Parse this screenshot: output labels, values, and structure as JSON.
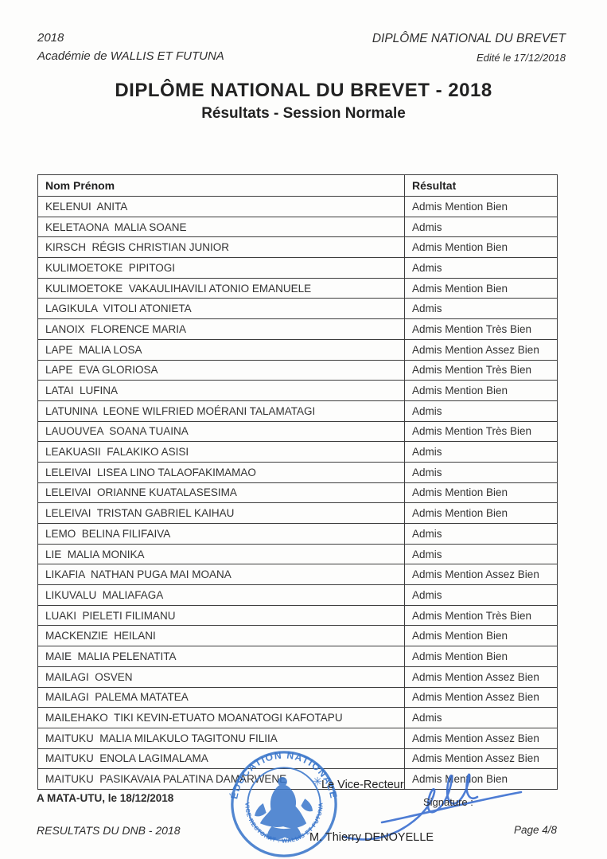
{
  "header": {
    "year": "2018",
    "academy": "Académie de WALLIS ET FUTUNA",
    "doc_type": "DIPLÔME NATIONAL DU BREVET",
    "edited": "Edité le 17/12/2018",
    "title": "DIPLÔME NATIONAL DU BREVET - 2018",
    "subtitle": "Résultats - Session Normale"
  },
  "table": {
    "columns": [
      "Nom Prénom",
      "Résultat"
    ],
    "rows": [
      {
        "name": "KELENUI  ANITA",
        "result": "Admis Mention Bien"
      },
      {
        "name": "KELETAONA  MALIA SOANE",
        "result": "Admis"
      },
      {
        "name": "KIRSCH  RÉGIS CHRISTIAN JUNIOR",
        "result": "Admis Mention Bien"
      },
      {
        "name": "KULIMOETOKE  PIPITOGI",
        "result": "Admis"
      },
      {
        "name": "KULIMOETOKE  VAKAULIHAVILI ATONIO EMANUELE",
        "result": "Admis Mention Bien"
      },
      {
        "name": "LAGIKULA  VITOLI ATONIETA",
        "result": "Admis"
      },
      {
        "name": "LANOIX  FLORENCE MARIA",
        "result": "Admis Mention Très Bien"
      },
      {
        "name": "LAPE  MALIA LOSA",
        "result": "Admis Mention Assez Bien"
      },
      {
        "name": "LAPE  EVA GLORIOSA",
        "result": "Admis Mention Très Bien"
      },
      {
        "name": "LATAI  LUFINA",
        "result": "Admis Mention Bien"
      },
      {
        "name": "LATUNINA  LEONE WILFRIED MOÉRANI TALAMATAGI",
        "result": "Admis"
      },
      {
        "name": "LAUOUVEA  SOANA TUAINA",
        "result": "Admis Mention Très Bien"
      },
      {
        "name": "LEAKUASII  FALAKIKO ASISI",
        "result": "Admis"
      },
      {
        "name": "LELEIVAI  LISEA LINO TALAOFAKIMAMAO",
        "result": "Admis"
      },
      {
        "name": "LELEIVAI  ORIANNE KUATALASESIMA",
        "result": "Admis Mention Bien"
      },
      {
        "name": "LELEIVAI  TRISTAN GABRIEL KAIHAU",
        "result": "Admis Mention Bien"
      },
      {
        "name": "LEMO  BELINA FILIFAIVA",
        "result": "Admis"
      },
      {
        "name": "LIE  MALIA MONIKA",
        "result": "Admis"
      },
      {
        "name": "LIKAFIA  NATHAN PUGA MAI MOANA",
        "result": "Admis Mention Assez Bien"
      },
      {
        "name": "LIKUVALU  MALIAFAGA",
        "result": "Admis"
      },
      {
        "name": "LUAKI  PIELETI FILIMANU",
        "result": "Admis Mention Très Bien"
      },
      {
        "name": "MACKENZIE  HEILANI",
        "result": "Admis Mention Bien"
      },
      {
        "name": "MAIE  MALIA PELENATITA",
        "result": "Admis Mention Bien"
      },
      {
        "name": "MAILAGI  OSVEN",
        "result": "Admis Mention Assez Bien"
      },
      {
        "name": "MAILAGI  PALEMA MATATEA",
        "result": "Admis Mention Assez Bien"
      },
      {
        "name": "MAILEHAKO  TIKI KEVIN-ETUATO MOANATOGI KAFOTAPU",
        "result": "Admis"
      },
      {
        "name": "MAITUKU  MALIA MILAKULO TAGITONU FILIIA",
        "result": "Admis Mention Assez Bien"
      },
      {
        "name": "MAITUKU  ENOLA LAGIMALAMA",
        "result": "Admis Mention Assez Bien"
      },
      {
        "name": "MAITUKU  PASIKAVAIA PALATINA DAMARWENE",
        "result": "Admis Mention Bien"
      }
    ]
  },
  "footer": {
    "place_date": "A MATA-UTU, le 18/12/2018",
    "vice_recteur": "Le Vice-Recteur",
    "signature_label": "Signature :",
    "signatory": "M. Thierry DENOYELLE",
    "doc_ref": "RESULTATS DU DNB - 2018",
    "page_number": "Page 4/8"
  },
  "stamp": {
    "arc_top": "ÉDUCATION NATIONALE",
    "arc_bottom": "VICE-RECTORAT . WALLIS ET FUTUNA",
    "star": "✳",
    "color": "#3a76cb"
  }
}
